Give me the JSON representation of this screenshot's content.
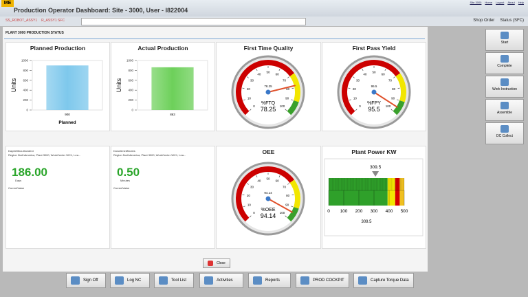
{
  "header": {
    "logo": "ME",
    "title": "Production Operator Dashboard: Site - 3000, User - I822004",
    "links": [
      "Site 3000",
      "Home",
      "Logout",
      "About",
      "Help"
    ]
  },
  "toolbar": {
    "chips": [
      "SS_ROBOT_ASSY1",
      "R_ASSY1 SFC"
    ],
    "right": [
      "Shop Order",
      "Status (SFC)"
    ]
  },
  "panel": {
    "title": "PLANT 3000 PRODUCTION STATUS"
  },
  "kpis": [
    {
      "name": "DaysWithoutIncident",
      "scope": "Region NorthAmerica, Plant 3000, WorkCenter WC1, Lea...",
      "value": "186.00",
      "unit": "Days",
      "footer": "CurrentValue"
    },
    {
      "name": "DowntimeMinutes",
      "scope": "Region NorthAmerica, Plant 3000, WorkCenter WC1, Lea...",
      "value": "0.50",
      "unit": "Minutes",
      "footer": "CurrentValue"
    }
  ],
  "chart_data": [
    {
      "type": "bar",
      "title": "Planned Production",
      "categories": [
        "900"
      ],
      "values": [
        900
      ],
      "x_label": "Planned",
      "y_label": "Units",
      "ylim": [
        0,
        1000
      ],
      "yticks": [
        0,
        200,
        400,
        600,
        800,
        1000
      ],
      "color": "#7ec8ec"
    },
    {
      "type": "bar",
      "title": "Actual Production",
      "categories": [
        "863"
      ],
      "values": [
        863
      ],
      "y_label": "Units",
      "ylim": [
        0,
        1000
      ],
      "yticks": [
        0,
        200,
        400,
        600,
        800,
        1000
      ],
      "color": "#6dd05a"
    },
    {
      "type": "gauge",
      "title": "First Time Quality",
      "value": 78.25,
      "label": "%FTQ",
      "range": [
        0,
        100
      ],
      "ticks": [
        0,
        10,
        20,
        30,
        40,
        50,
        60,
        70,
        80,
        90,
        100
      ],
      "bands": [
        {
          "from": 0,
          "to": 70,
          "color": "#cc0000"
        },
        {
          "from": 70,
          "to": 90,
          "color": "#f2e600"
        },
        {
          "from": 90,
          "to": 100,
          "color": "#3aa02c"
        }
      ]
    },
    {
      "type": "gauge",
      "title": "First Pass Yield",
      "value": 95.5,
      "label": "%FPY",
      "range": [
        0,
        100
      ],
      "ticks": [
        0,
        10,
        20,
        30,
        40,
        50,
        60,
        70,
        80,
        90,
        100
      ],
      "bands": [
        {
          "from": 0,
          "to": 70,
          "color": "#cc0000"
        },
        {
          "from": 70,
          "to": 90,
          "color": "#f2e600"
        },
        {
          "from": 90,
          "to": 100,
          "color": "#3aa02c"
        }
      ]
    },
    {
      "type": "gauge",
      "title": "OEE",
      "value": 94.14,
      "label": "%OEE",
      "range": [
        0,
        100
      ],
      "ticks": [
        0,
        10,
        20,
        30,
        40,
        50,
        60,
        70,
        80,
        90,
        100
      ],
      "bands": [
        {
          "from": 0,
          "to": 70,
          "color": "#cc0000"
        },
        {
          "from": 70,
          "to": 90,
          "color": "#f2e600"
        },
        {
          "from": 90,
          "to": 100,
          "color": "#3aa02c"
        }
      ]
    },
    {
      "type": "linear_gauge",
      "title": "Plant Power KW",
      "value": 309.5,
      "xlim": [
        0,
        500
      ],
      "xticks": [
        0,
        100,
        200,
        300,
        400,
        500
      ],
      "bands": [
        {
          "from": 0,
          "to": 390,
          "color": "#2fa02a"
        },
        {
          "from": 390,
          "to": 440,
          "color": "#f2e600"
        },
        {
          "from": 440,
          "to": 470,
          "color": "#d40000"
        },
        {
          "from": 470,
          "to": 500,
          "color": "#f0c020"
        }
      ]
    }
  ],
  "side_buttons": [
    "Start",
    "Complete",
    "Work Instruction",
    "Assemble",
    "DC Collect"
  ],
  "close": "Close",
  "bottom_buttons": [
    "Sign Off",
    "Log NC",
    "Tool List",
    "Activities",
    "Reports",
    "PROD COCKPIT",
    "Capture Torque Data"
  ]
}
